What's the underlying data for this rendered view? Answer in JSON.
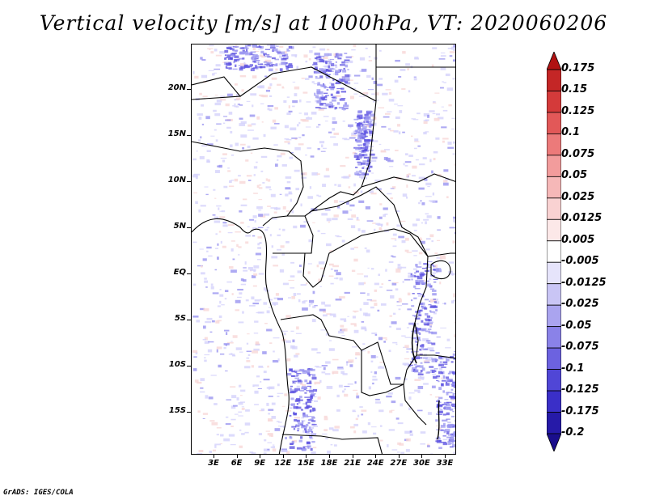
{
  "title": "Vertical velocity [m/s] at 1000hPa, VT: 2020060206",
  "credit": "GrADS: IGES/COLA",
  "map": {
    "lat_ticks": [
      "20N",
      "15N",
      "10N",
      "5N",
      "EQ",
      "5S",
      "10S",
      "15S"
    ],
    "lon_ticks": [
      "3E",
      "6E",
      "9E",
      "12E",
      "15E",
      "18E",
      "21E",
      "24E",
      "27E",
      "30E",
      "33E"
    ],
    "field_colors": {
      "strong_negative": "#5a4fe0",
      "moderate_negative": "#9a95f0",
      "weak_negative": "#d4d2fb",
      "weak_positive": "#f8d7d7"
    }
  },
  "colorbar": {
    "labels": [
      "0.175",
      "0.15",
      "0.125",
      "0.1",
      "0.075",
      "0.05",
      "0.025",
      "0.0125",
      "0.005",
      "-0.005",
      "-0.0125",
      "-0.025",
      "-0.05",
      "-0.075",
      "-0.1",
      "-0.125",
      "-0.175",
      "-0.2"
    ],
    "colors": [
      "#b01212",
      "#c42626",
      "#d43a3a",
      "#e25858",
      "#ec7a7a",
      "#f29c9c",
      "#f6b8b8",
      "#f9d2d2",
      "#fce8e8",
      "#ffffff",
      "#e6e4fb",
      "#c9c5f5",
      "#aaa4ef",
      "#8a82e8",
      "#6c62e0",
      "#5046d6",
      "#3a2fc8",
      "#261aa8",
      "#1a0e8c"
    ]
  }
}
